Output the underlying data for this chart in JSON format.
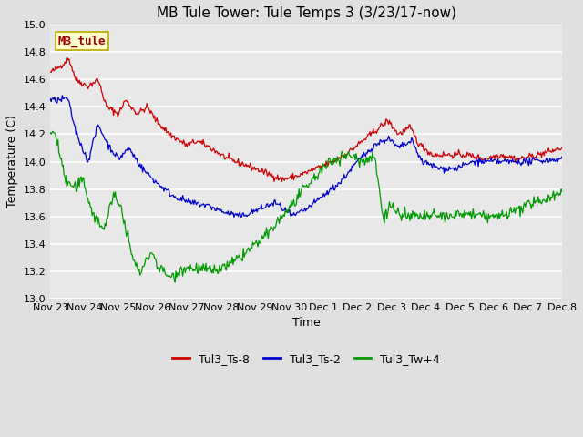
{
  "title": "MB Tule Tower: Tule Temps 3 (3/23/17-now)",
  "xlabel": "Time",
  "ylabel": "Temperature (C)",
  "ylim": [
    13.0,
    15.0
  ],
  "yticks": [
    13.0,
    13.2,
    13.4,
    13.6,
    13.8,
    14.0,
    14.2,
    14.4,
    14.6,
    14.8,
    15.0
  ],
  "xtick_labels": [
    "Nov 23",
    "Nov 24",
    "Nov 25",
    "Nov 26",
    "Nov 27",
    "Nov 28",
    "Nov 29",
    "Nov 30",
    "Dec 1",
    "Dec 2",
    "Dec 3",
    "Dec 4",
    "Dec 5",
    "Dec 6",
    "Dec 7",
    "Dec 8"
  ],
  "bg_color": "#e0e0e0",
  "plot_bg_color": "#e8e8e8",
  "grid_color": "#ffffff",
  "line_colors": {
    "red": "#cc0000",
    "blue": "#0000cc",
    "green": "#009900"
  },
  "legend_labels": [
    "Tul3_Ts-8",
    "Tul3_Ts-2",
    "Tul3_Tw+4"
  ],
  "watermark_text": "MB_tule",
  "watermark_bg": "#ffffcc",
  "watermark_border": "#bbaa00",
  "title_fontsize": 11,
  "axis_fontsize": 9,
  "tick_fontsize": 8,
  "legend_fontsize": 9
}
